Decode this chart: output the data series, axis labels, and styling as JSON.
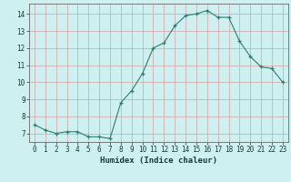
{
  "x": [
    0,
    1,
    2,
    3,
    4,
    5,
    6,
    7,
    8,
    9,
    10,
    11,
    12,
    13,
    14,
    15,
    16,
    17,
    18,
    19,
    20,
    21,
    22,
    23
  ],
  "y": [
    7.5,
    7.2,
    7.0,
    7.1,
    7.1,
    6.8,
    6.8,
    6.7,
    8.8,
    9.5,
    10.5,
    12.0,
    12.3,
    13.3,
    13.9,
    14.0,
    14.2,
    13.8,
    13.8,
    12.4,
    11.5,
    10.9,
    10.8,
    10.0
  ],
  "xlabel": "Humidex (Indice chaleur)",
  "bg_color": "#cff0f0",
  "line_color": "#2e7d6e",
  "ylim": [
    6.5,
    14.6
  ],
  "xlim": [
    -0.5,
    23.5
  ],
  "yticks": [
    7,
    8,
    9,
    10,
    11,
    12,
    13,
    14
  ],
  "xticks": [
    0,
    1,
    2,
    3,
    4,
    5,
    6,
    7,
    8,
    9,
    10,
    11,
    12,
    13,
    14,
    15,
    16,
    17,
    18,
    19,
    20,
    21,
    22,
    23
  ]
}
